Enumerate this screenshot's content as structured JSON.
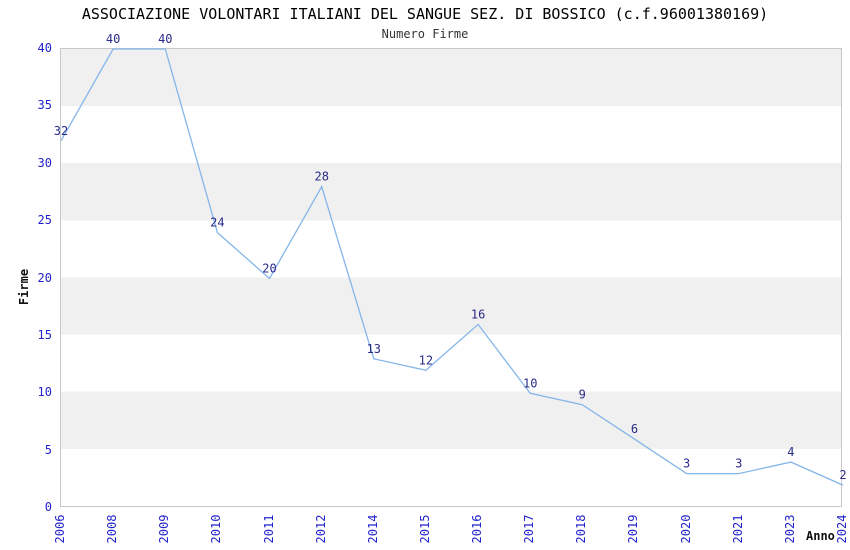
{
  "chart_data": {
    "type": "line",
    "title": "ASSOCIAZIONE VOLONTARI ITALIANI DEL SANGUE SEZ. DI BOSSICO (c.f.96001380169)",
    "subtitle": "Numero Firme",
    "xlabel": "Anno",
    "ylabel": "Firme",
    "categories": [
      "2006",
      "2008",
      "2009",
      "2010",
      "2011",
      "2012",
      "2014",
      "2015",
      "2016",
      "2017",
      "2018",
      "2019",
      "2020",
      "2021",
      "2023",
      "2024"
    ],
    "values": [
      32,
      40,
      40,
      24,
      20,
      28,
      13,
      12,
      16,
      10,
      9,
      6,
      3,
      3,
      4,
      2
    ],
    "ylim": [
      0,
      40
    ],
    "yticks": [
      0,
      5,
      10,
      15,
      20,
      25,
      30,
      35,
      40
    ],
    "grid": "alternating-horizontal-bands",
    "legend_position": "none",
    "data_labels_visible": true,
    "colors": {
      "line": "#85b6ea",
      "data_label": "#2b2b8a",
      "tick_label": "#2323cc",
      "band": "#f0f0f0",
      "band_alt": "#ffffff",
      "plot_border": "#c8c8c8",
      "title": "#000000",
      "subtitle": "#333333",
      "axis_label": "#111111"
    }
  }
}
